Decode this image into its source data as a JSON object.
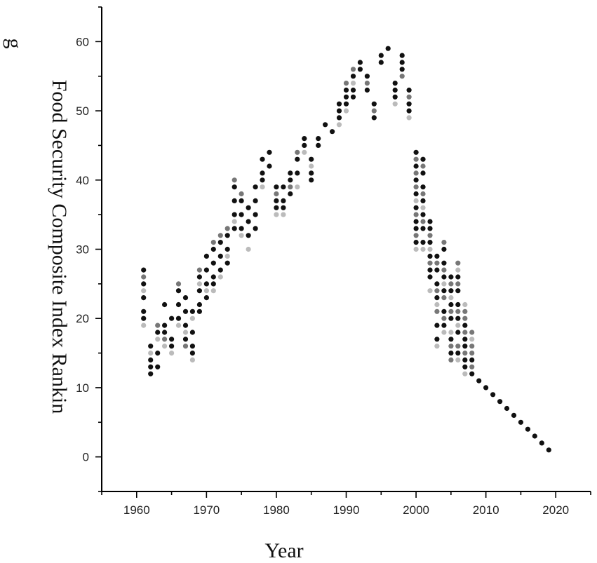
{
  "chart_data": {
    "type": "scatter",
    "title": "",
    "xlabel": "Year",
    "ylabel_lines": [
      "Food Security Composite Index Rankin",
      "g"
    ],
    "xlim": [
      1955,
      2025
    ],
    "ylim": [
      -5,
      65
    ],
    "xticks": [
      "1960",
      "1970",
      "1980",
      "1990",
      "2000",
      "2010",
      "2020"
    ],
    "yticks": [
      "0",
      "10",
      "20",
      "30",
      "40",
      "50",
      "60"
    ],
    "grid": false,
    "legend": "none",
    "colors": {
      "dark": "#111111",
      "mid": "#777777",
      "light": "#bbbbbb"
    },
    "series": [
      {
        "shade": "dark",
        "points": [
          [
            1961,
            27
          ],
          [
            1961,
            25
          ],
          [
            1961,
            23
          ],
          [
            1961,
            21
          ],
          [
            1961,
            20
          ],
          [
            1962,
            16
          ],
          [
            1962,
            14
          ],
          [
            1962,
            13
          ],
          [
            1962,
            12
          ],
          [
            1963,
            18
          ],
          [
            1963,
            15
          ],
          [
            1963,
            13
          ],
          [
            1964,
            22
          ],
          [
            1964,
            19
          ],
          [
            1964,
            18
          ],
          [
            1965,
            20
          ],
          [
            1965,
            17
          ],
          [
            1965,
            16
          ],
          [
            1966,
            24
          ],
          [
            1966,
            22
          ],
          [
            1966,
            20
          ],
          [
            1967,
            23
          ],
          [
            1967,
            21
          ],
          [
            1967,
            19
          ],
          [
            1967,
            17
          ],
          [
            1968,
            21
          ],
          [
            1968,
            18
          ],
          [
            1968,
            16
          ],
          [
            1968,
            15
          ],
          [
            1969,
            26
          ],
          [
            1969,
            24
          ],
          [
            1969,
            22
          ],
          [
            1969,
            21
          ],
          [
            1970,
            29
          ],
          [
            1970,
            27
          ],
          [
            1970,
            25
          ],
          [
            1970,
            23
          ],
          [
            1971,
            30
          ],
          [
            1971,
            28
          ],
          [
            1971,
            26
          ],
          [
            1971,
            25
          ],
          [
            1972,
            31
          ],
          [
            1972,
            29
          ],
          [
            1972,
            27
          ],
          [
            1973,
            32
          ],
          [
            1973,
            30
          ],
          [
            1973,
            28
          ],
          [
            1974,
            39
          ],
          [
            1974,
            37
          ],
          [
            1974,
            35
          ],
          [
            1974,
            33
          ],
          [
            1975,
            37
          ],
          [
            1975,
            35
          ],
          [
            1975,
            33
          ],
          [
            1976,
            36
          ],
          [
            1976,
            34
          ],
          [
            1976,
            32
          ],
          [
            1977,
            39
          ],
          [
            1977,
            37
          ],
          [
            1977,
            35
          ],
          [
            1977,
            33
          ],
          [
            1978,
            43
          ],
          [
            1978,
            41
          ],
          [
            1978,
            40
          ],
          [
            1979,
            44
          ],
          [
            1979,
            42
          ],
          [
            1980,
            39
          ],
          [
            1980,
            37
          ],
          [
            1980,
            36
          ],
          [
            1981,
            39
          ],
          [
            1981,
            37
          ],
          [
            1981,
            36
          ],
          [
            1982,
            41
          ],
          [
            1982,
            40
          ],
          [
            1982,
            38
          ],
          [
            1983,
            43
          ],
          [
            1983,
            41
          ],
          [
            1984,
            46
          ],
          [
            1984,
            45
          ],
          [
            1985,
            43
          ],
          [
            1985,
            41
          ],
          [
            1985,
            40
          ],
          [
            1986,
            46
          ],
          [
            1986,
            45
          ],
          [
            1987,
            48
          ],
          [
            1988,
            47
          ],
          [
            1989,
            51
          ],
          [
            1989,
            50
          ],
          [
            1989,
            49
          ],
          [
            1990,
            53
          ],
          [
            1990,
            52
          ],
          [
            1990,
            51
          ],
          [
            1991,
            55
          ],
          [
            1991,
            53
          ],
          [
            1991,
            52
          ],
          [
            1992,
            57
          ],
          [
            1992,
            56
          ],
          [
            1993,
            55
          ],
          [
            1993,
            53
          ],
          [
            1994,
            51
          ],
          [
            1994,
            49
          ],
          [
            1995,
            58
          ],
          [
            1995,
            57
          ],
          [
            1996,
            59
          ],
          [
            1997,
            54
          ],
          [
            1997,
            53
          ],
          [
            1997,
            52
          ],
          [
            1998,
            58
          ],
          [
            1998,
            57
          ],
          [
            1998,
            56
          ],
          [
            1999,
            53
          ],
          [
            1999,
            51
          ],
          [
            1999,
            50
          ],
          [
            2000,
            44
          ],
          [
            2000,
            42
          ],
          [
            2000,
            40
          ],
          [
            2000,
            38
          ],
          [
            2000,
            36
          ],
          [
            2000,
            34
          ],
          [
            2000,
            33
          ],
          [
            2000,
            31
          ],
          [
            2001,
            43
          ],
          [
            2001,
            41
          ],
          [
            2001,
            39
          ],
          [
            2001,
            37
          ],
          [
            2001,
            35
          ],
          [
            2001,
            33
          ],
          [
            2001,
            31
          ],
          [
            2002,
            34
          ],
          [
            2002,
            33
          ],
          [
            2002,
            31
          ],
          [
            2002,
            29
          ],
          [
            2002,
            27
          ],
          [
            2002,
            26
          ],
          [
            2003,
            29
          ],
          [
            2003,
            27
          ],
          [
            2003,
            25
          ],
          [
            2003,
            23
          ],
          [
            2003,
            19
          ],
          [
            2003,
            17
          ],
          [
            2004,
            30
          ],
          [
            2004,
            28
          ],
          [
            2004,
            26
          ],
          [
            2004,
            24
          ],
          [
            2004,
            21
          ],
          [
            2004,
            19
          ],
          [
            2005,
            26
          ],
          [
            2005,
            24
          ],
          [
            2005,
            22
          ],
          [
            2005,
            20
          ],
          [
            2005,
            17
          ],
          [
            2005,
            15
          ],
          [
            2006,
            26
          ],
          [
            2006,
            24
          ],
          [
            2006,
            22
          ],
          [
            2006,
            20
          ],
          [
            2006,
            18
          ],
          [
            2006,
            15
          ],
          [
            2007,
            19
          ],
          [
            2007,
            17
          ],
          [
            2007,
            16
          ],
          [
            2007,
            14
          ],
          [
            2007,
            13
          ],
          [
            2008,
            14
          ],
          [
            2008,
            12
          ],
          [
            2009,
            11
          ],
          [
            2010,
            10
          ],
          [
            2011,
            9
          ],
          [
            2012,
            8
          ],
          [
            2013,
            7
          ],
          [
            2014,
            6
          ],
          [
            2015,
            5
          ],
          [
            2016,
            4
          ],
          [
            2017,
            3
          ],
          [
            2018,
            2
          ],
          [
            2019,
            1
          ]
        ]
      },
      {
        "shade": "mid",
        "points": [
          [
            1961,
            26
          ],
          [
            1963,
            19
          ],
          [
            1964,
            17
          ],
          [
            1966,
            25
          ],
          [
            1967,
            16
          ],
          [
            1969,
            27
          ],
          [
            1971,
            31
          ],
          [
            1972,
            32
          ],
          [
            1973,
            33
          ],
          [
            1974,
            40
          ],
          [
            1975,
            38
          ],
          [
            1980,
            38
          ],
          [
            1982,
            39
          ],
          [
            1983,
            44
          ],
          [
            1990,
            54
          ],
          [
            1991,
            56
          ],
          [
            1993,
            54
          ],
          [
            1994,
            50
          ],
          [
            1998,
            55
          ],
          [
            1999,
            52
          ],
          [
            2000,
            43
          ],
          [
            2000,
            41
          ],
          [
            2000,
            39
          ],
          [
            2000,
            35
          ],
          [
            2000,
            32
          ],
          [
            2001,
            42
          ],
          [
            2001,
            38
          ],
          [
            2001,
            34
          ],
          [
            2002,
            32
          ],
          [
            2002,
            28
          ],
          [
            2003,
            28
          ],
          [
            2003,
            24
          ],
          [
            2003,
            21
          ],
          [
            2004,
            31
          ],
          [
            2004,
            27
          ],
          [
            2004,
            23
          ],
          [
            2004,
            20
          ],
          [
            2005,
            25
          ],
          [
            2005,
            21
          ],
          [
            2005,
            16
          ],
          [
            2005,
            14
          ],
          [
            2006,
            28
          ],
          [
            2006,
            25
          ],
          [
            2006,
            21
          ],
          [
            2006,
            16
          ],
          [
            2007,
            21
          ],
          [
            2007,
            20
          ],
          [
            2007,
            18
          ],
          [
            2007,
            15
          ],
          [
            2008,
            18
          ],
          [
            2008,
            16
          ],
          [
            2008,
            15
          ],
          [
            2008,
            13
          ]
        ]
      },
      {
        "shade": "light",
        "points": [
          [
            1961,
            19
          ],
          [
            1961,
            24
          ],
          [
            1962,
            15
          ],
          [
            1963,
            17
          ],
          [
            1964,
            16
          ],
          [
            1965,
            15
          ],
          [
            1966,
            19
          ],
          [
            1967,
            18
          ],
          [
            1968,
            14
          ],
          [
            1968,
            20
          ],
          [
            1969,
            25
          ],
          [
            1970,
            24
          ],
          [
            1971,
            24
          ],
          [
            1972,
            26
          ],
          [
            1973,
            29
          ],
          [
            1974,
            34
          ],
          [
            1975,
            32
          ],
          [
            1976,
            30
          ],
          [
            1978,
            39
          ],
          [
            1980,
            35
          ],
          [
            1981,
            35
          ],
          [
            1983,
            39
          ],
          [
            1984,
            44
          ],
          [
            1985,
            42
          ],
          [
            1989,
            48
          ],
          [
            1990,
            50
          ],
          [
            1991,
            54
          ],
          [
            1997,
            51
          ],
          [
            1999,
            49
          ],
          [
            2000,
            30
          ],
          [
            2000,
            37
          ],
          [
            2001,
            30
          ],
          [
            2001,
            36
          ],
          [
            2002,
            24
          ],
          [
            2002,
            30
          ],
          [
            2003,
            16
          ],
          [
            2003,
            22
          ],
          [
            2004,
            18
          ],
          [
            2004,
            25
          ],
          [
            2005,
            18
          ],
          [
            2005,
            23
          ],
          [
            2006,
            14
          ],
          [
            2006,
            19
          ],
          [
            2006,
            27
          ],
          [
            2007,
            12
          ],
          [
            2007,
            22
          ],
          [
            2008,
            17
          ]
        ]
      }
    ]
  }
}
